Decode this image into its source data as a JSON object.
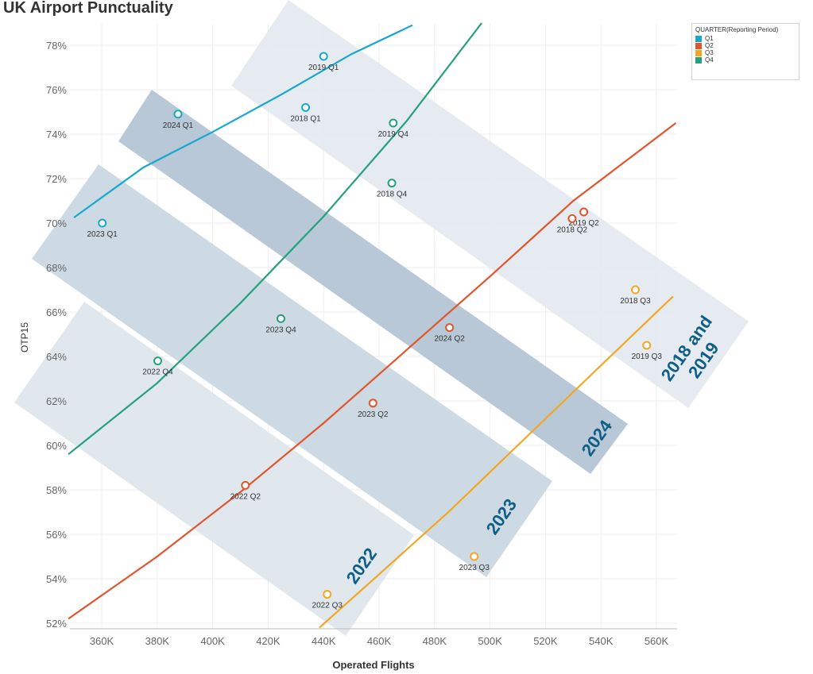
{
  "chart_data": {
    "type": "scatter",
    "title": "UK Airport Punctuality",
    "xlabel": "Operated Flights",
    "ylabel": "OTP15",
    "xlim": [
      348000,
      568000
    ],
    "ylim": [
      51.8,
      79
    ],
    "x_ticks": [
      360000,
      380000,
      400000,
      420000,
      440000,
      460000,
      480000,
      500000,
      520000,
      540000,
      560000
    ],
    "x_tick_labels": [
      "360K",
      "380K",
      "400K",
      "420K",
      "440K",
      "460K",
      "480K",
      "500K",
      "520K",
      "540K",
      "560K"
    ],
    "y_ticks": [
      52,
      54,
      56,
      58,
      60,
      62,
      64,
      66,
      68,
      70,
      72,
      74,
      76,
      78
    ],
    "y_tick_labels": [
      "52%",
      "54%",
      "56%",
      "58%",
      "60%",
      "62%",
      "64%",
      "66%",
      "68%",
      "70%",
      "72%",
      "74%",
      "76%",
      "78%"
    ],
    "legend": {
      "title": "QUARTER(Reporting Period)",
      "position": "top-right",
      "items": [
        {
          "label": "Q1",
          "color": "#17a8cf"
        },
        {
          "label": "Q2",
          "color": "#e0552b"
        },
        {
          "label": "Q3",
          "color": "#f2a722"
        },
        {
          "label": "Q4",
          "color": "#25a07d"
        }
      ]
    },
    "points": [
      {
        "label": "2019 Q1",
        "series": "Q1",
        "x": 440000,
        "y": 77.5
      },
      {
        "label": "2018 Q1",
        "series": "Q1",
        "x": 433500,
        "y": 75.2
      },
      {
        "label": "2024 Q1",
        "series": "Q1",
        "x": 387500,
        "y": 74.9
      },
      {
        "label": "2023 Q1",
        "series": "Q1",
        "x": 360200,
        "y": 70.0
      },
      {
        "label": "2019 Q2",
        "series": "Q2",
        "x": 533800,
        "y": 70.5
      },
      {
        "label": "2018 Q2",
        "series": "Q2",
        "x": 529600,
        "y": 70.2
      },
      {
        "label": "2024 Q2",
        "series": "Q2",
        "x": 485400,
        "y": 65.3
      },
      {
        "label": "2023 Q2",
        "series": "Q2",
        "x": 457800,
        "y": 61.9
      },
      {
        "label": "2022 Q2",
        "series": "Q2",
        "x": 411800,
        "y": 58.2
      },
      {
        "label": "2018 Q3",
        "series": "Q3",
        "x": 552400,
        "y": 67.0
      },
      {
        "label": "2019 Q3",
        "series": "Q3",
        "x": 556500,
        "y": 64.5
      },
      {
        "label": "2023 Q3",
        "series": "Q3",
        "x": 494300,
        "y": 55.0
      },
      {
        "label": "2022 Q3",
        "series": "Q3",
        "x": 441300,
        "y": 53.3
      },
      {
        "label": "2019 Q4",
        "series": "Q4",
        "x": 465100,
        "y": 74.5
      },
      {
        "label": "2018 Q4",
        "series": "Q4",
        "x": 464600,
        "y": 71.8
      },
      {
        "label": "2023 Q4",
        "series": "Q4",
        "x": 424600,
        "y": 65.7
      },
      {
        "label": "2022 Q4",
        "series": "Q4",
        "x": 380200,
        "y": 63.8
      }
    ],
    "trend_lines": [
      {
        "series": "Q1",
        "points": [
          [
            350000,
            70.25
          ],
          [
            375000,
            72.5
          ],
          [
            400000,
            74.1
          ],
          [
            425000,
            75.8
          ],
          [
            450000,
            77.6
          ],
          [
            472000,
            78.9
          ]
        ]
      },
      {
        "series": "Q2",
        "points": [
          [
            348000,
            52.2
          ],
          [
            380000,
            55.0
          ],
          [
            410000,
            57.9
          ],
          [
            440000,
            61.0
          ],
          [
            470000,
            64.3
          ],
          [
            500000,
            67.6
          ],
          [
            530000,
            71.0
          ],
          [
            567000,
            74.5
          ]
        ]
      },
      {
        "series": "Q3",
        "points": [
          [
            438500,
            51.8
          ],
          [
            460000,
            54.2
          ],
          [
            485000,
            57.0
          ],
          [
            510000,
            60.0
          ],
          [
            535000,
            63.0
          ],
          [
            566000,
            66.7
          ]
        ]
      },
      {
        "series": "Q4",
        "points": [
          [
            348000,
            59.6
          ],
          [
            380000,
            62.8
          ],
          [
            410000,
            66.4
          ],
          [
            440000,
            70.3
          ],
          [
            470000,
            74.6
          ],
          [
            497000,
            79.0
          ]
        ]
      }
    ],
    "annotations": [
      {
        "text": "2022",
        "type": "band",
        "color": "#dde5ec"
      },
      {
        "text": "2023",
        "type": "band",
        "color": "#c8d6e0"
      },
      {
        "text": "2024",
        "type": "band",
        "color": "#b0c2d2"
      },
      {
        "text": "2018 and 2019",
        "type": "band",
        "color": "#e3e9ef",
        "lines": [
          "2018 and",
          "2019"
        ]
      }
    ]
  }
}
